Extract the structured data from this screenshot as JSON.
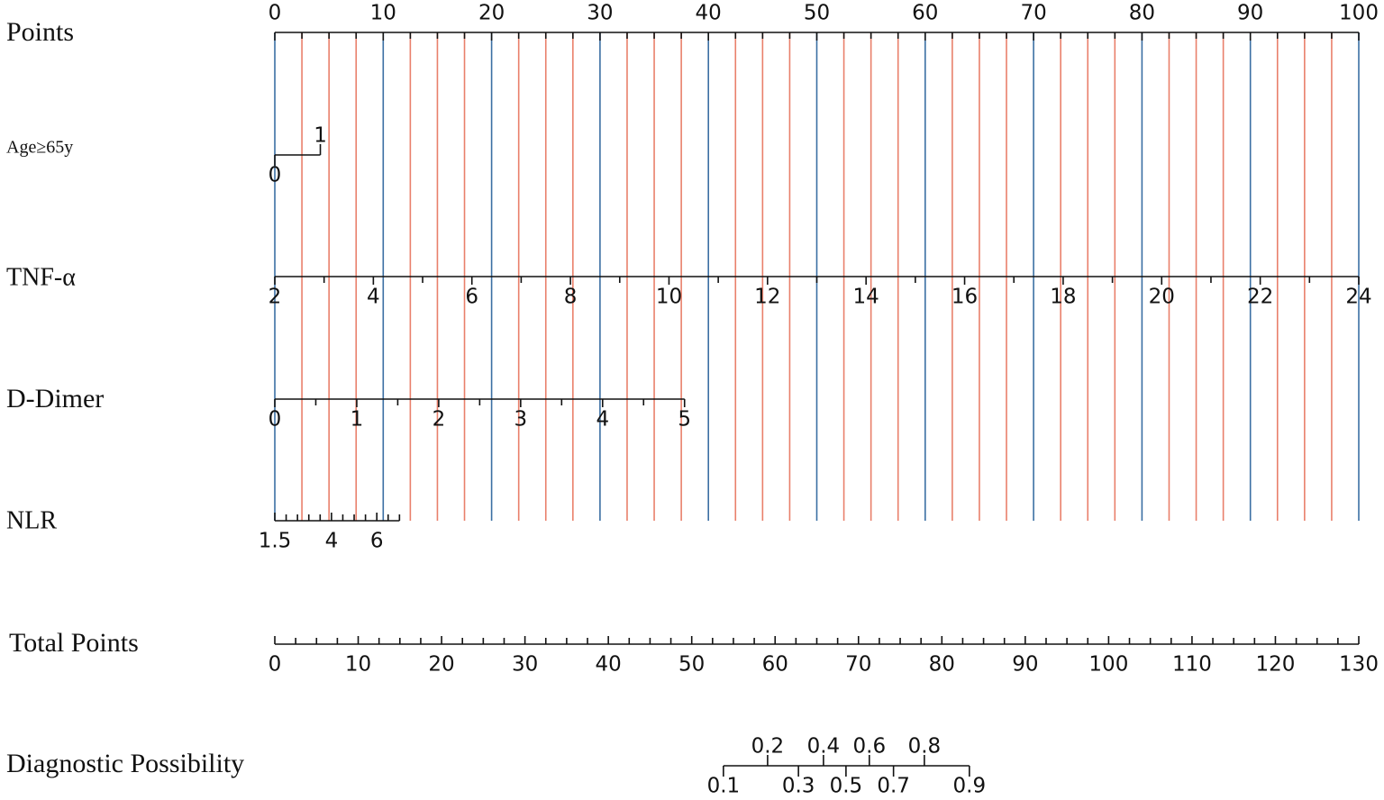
{
  "chart_data": {
    "type": "nomogram",
    "grid_colors": {
      "major": "#3b6fa3",
      "minor": "#e9806b"
    },
    "color": "#111111",
    "scales": [
      {
        "name": "Points",
        "range": [
          0,
          100
        ],
        "points": [
          0,
          100
        ],
        "ticks": [
          0,
          10,
          20,
          30,
          40,
          50,
          60,
          70,
          80,
          90,
          100
        ],
        "minor_ticks": [
          2.5,
          5,
          7.5,
          12.5,
          15,
          17.5,
          22.5,
          25,
          27.5,
          32.5,
          35,
          37.5,
          42.5,
          45,
          47.5,
          52.5,
          55,
          57.5,
          62.5,
          65,
          67.5,
          72.5,
          75,
          77.5,
          82.5,
          85,
          87.5,
          92.5,
          95,
          97.5
        ],
        "label_side": "above"
      },
      {
        "name": "Age≥65y",
        "range": [
          0,
          1
        ],
        "points": [
          0,
          4.2
        ],
        "ticks": [
          0,
          1
        ],
        "label_sides": [
          "below",
          "above"
        ]
      },
      {
        "name": "TNF-α",
        "range": [
          2,
          24
        ],
        "points": [
          0,
          100
        ],
        "ticks": [
          2,
          4,
          6,
          8,
          10,
          12,
          14,
          16,
          18,
          20,
          22,
          24
        ],
        "minor_ticks": [
          3,
          5,
          7,
          9,
          11,
          13,
          15,
          17,
          19,
          21,
          23
        ],
        "label_side": "below"
      },
      {
        "name": "D-Dimer",
        "range": [
          0,
          5
        ],
        "points": [
          0,
          37.8
        ],
        "ticks": [
          0,
          1,
          2,
          3,
          4,
          5
        ],
        "minor_ticks": [
          0.5,
          1.5,
          2.5,
          3.5,
          4.5
        ],
        "label_side": "below"
      },
      {
        "name": "NLR",
        "range": [
          1.5,
          7
        ],
        "points": [
          0,
          11.5
        ],
        "ticks": [
          1.5,
          4,
          6
        ],
        "minor_ticks": [
          2,
          2.5,
          3,
          3.5,
          4.5,
          5,
          5.5,
          6.5,
          7
        ],
        "label_side": "below"
      },
      {
        "name": "Total Points",
        "range": [
          0,
          130
        ],
        "ticks": [
          0,
          10,
          20,
          30,
          40,
          50,
          60,
          70,
          80,
          90,
          100,
          110,
          120,
          130
        ],
        "minor_ticks": [
          2.5,
          5,
          7.5,
          12.5,
          15,
          17.5,
          22.5,
          25,
          27.5,
          32.5,
          35,
          37.5,
          42.5,
          45,
          47.5,
          52.5,
          55,
          57.5,
          62.5,
          65,
          67.5,
          72.5,
          75,
          77.5,
          82.5,
          85,
          87.5,
          92.5,
          95,
          97.5,
          102.5,
          105,
          107.5,
          112.5,
          115,
          117.5,
          122.5,
          125,
          127.5
        ],
        "label_side": "below"
      },
      {
        "name": "Diagnostic Possibility",
        "ticks": [
          0.1,
          0.2,
          0.3,
          0.4,
          0.5,
          0.6,
          0.7,
          0.8,
          0.9
        ],
        "total_points": [
          53.8,
          59.1,
          62.8,
          65.8,
          68.5,
          71.3,
          74.2,
          77.9,
          83.3
        ],
        "label_sides": [
          "below",
          "above",
          "below",
          "above",
          "below",
          "above",
          "below",
          "above",
          "below"
        ]
      }
    ]
  }
}
